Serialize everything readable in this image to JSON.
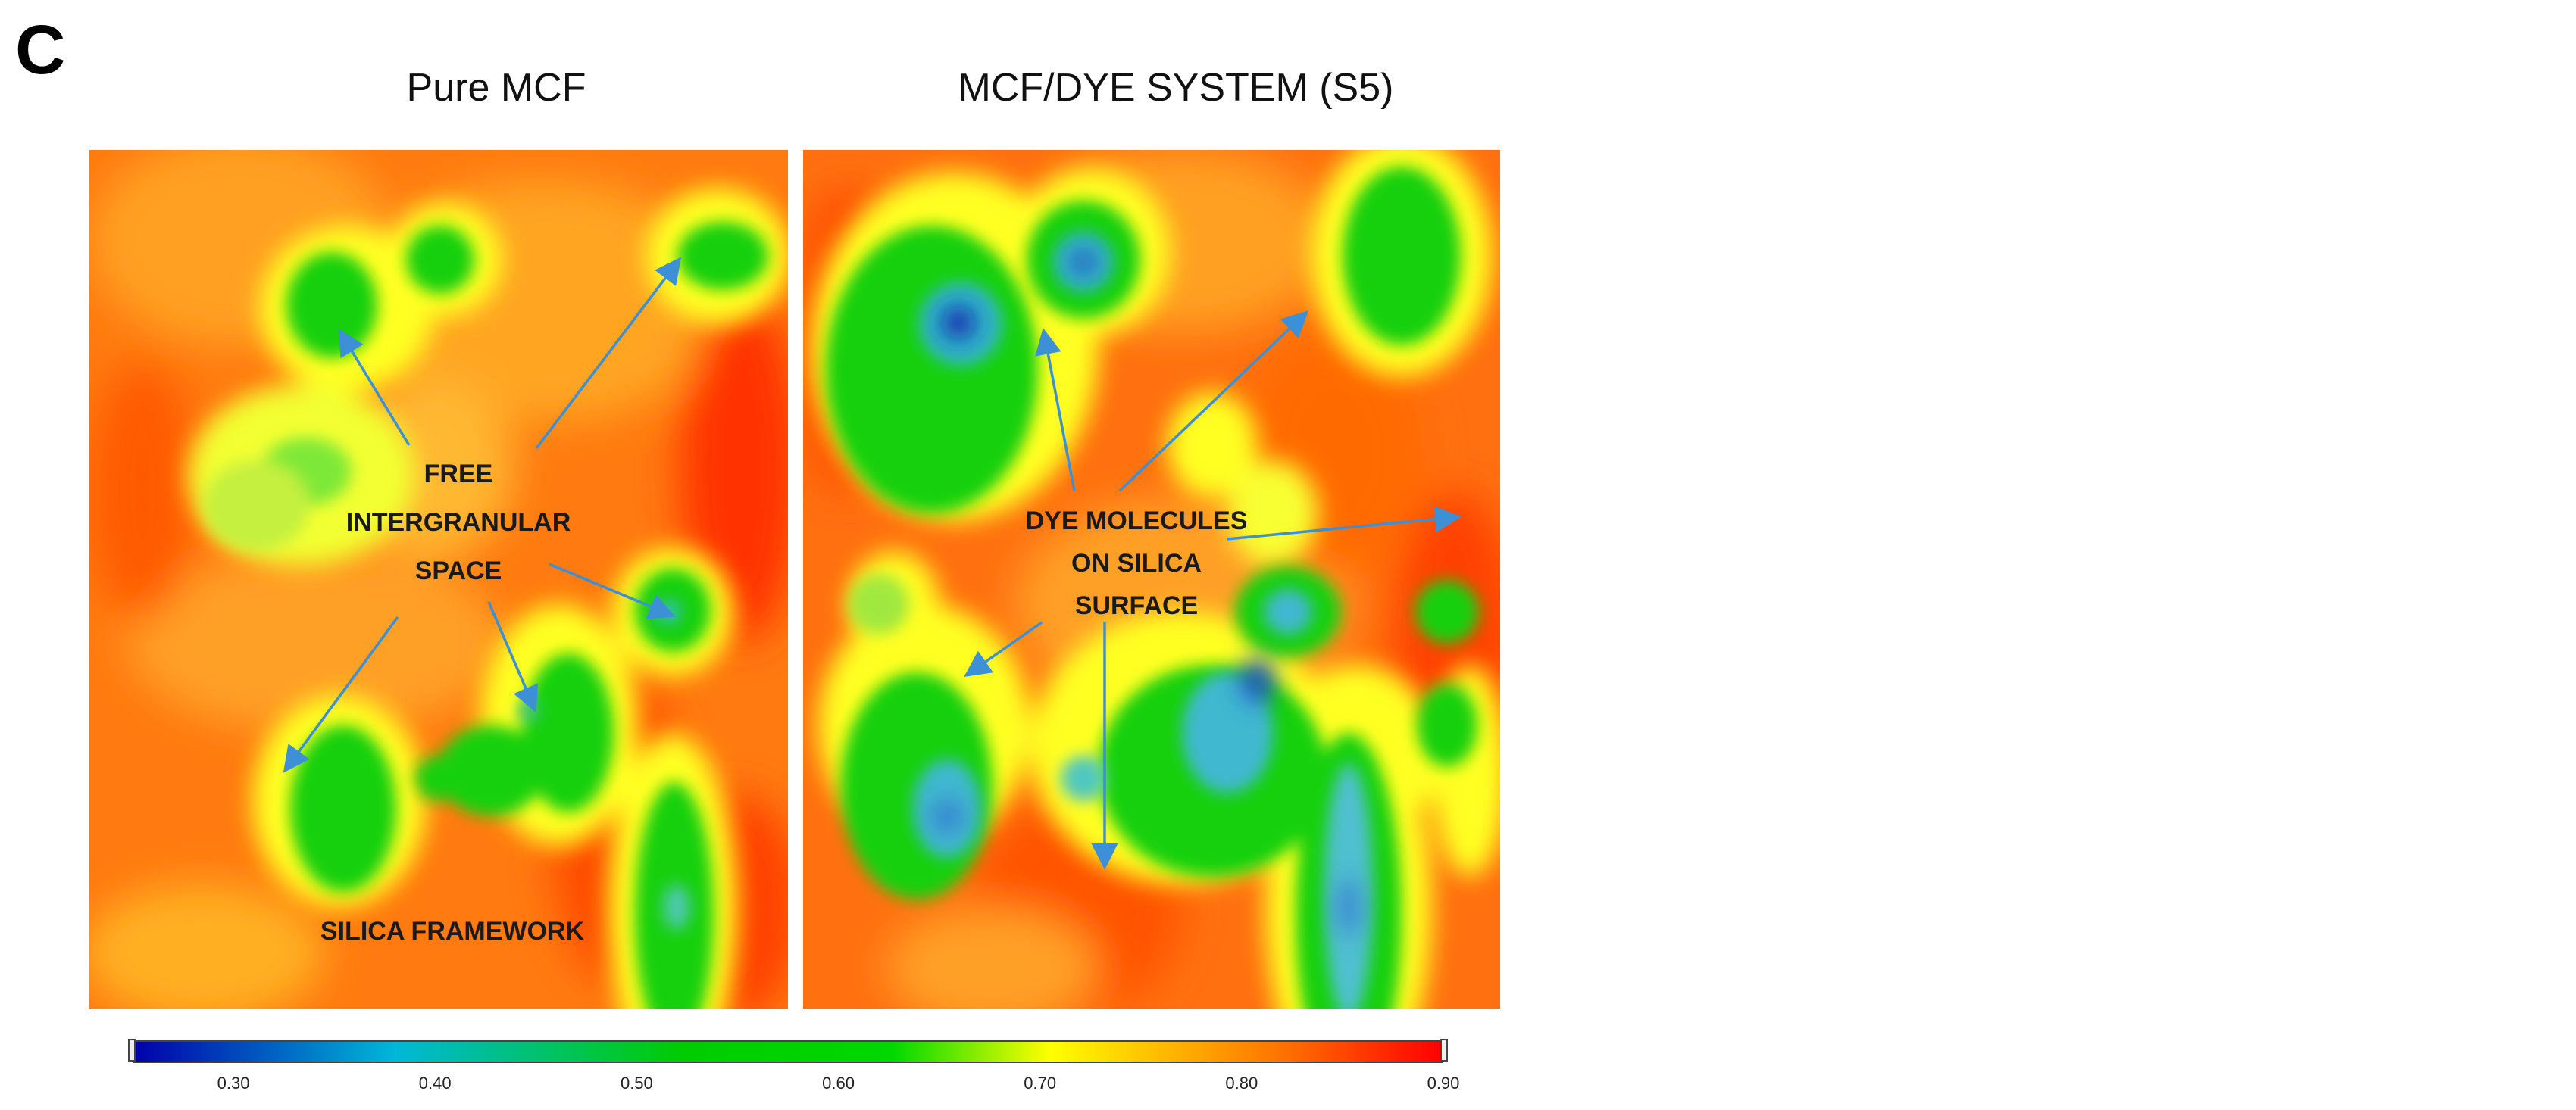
{
  "figure": {
    "panel_letter": "C",
    "panels": [
      {
        "title": "Pure MCF"
      },
      {
        "title": "MCF/DYE SYSTEM (S5)"
      }
    ],
    "annotations": {
      "free_space": [
        "FREE",
        "INTERGRANULAR",
        "SPACE"
      ],
      "silica_framework": "SILICA FRAMEWORK",
      "dye_molecules": [
        "DYE MOLECULES",
        "ON SILICA",
        "SURFACE"
      ]
    },
    "colors": {
      "background_high": "#ff5000",
      "colormap": [
        "#0000aa",
        "#00b8d8",
        "#00cc00",
        "#ffff00",
        "#ff7000",
        "#ff0000"
      ],
      "arrow": "#3d8fd6",
      "annotation_text": "#1a1a1a"
    }
  },
  "chart_data": {
    "type": "heatmap",
    "colorbar": {
      "min": 0.25,
      "max": 0.9,
      "ticks": [
        "0.30",
        "0.40",
        "0.50",
        "0.60",
        "0.70",
        "0.80",
        "0.90"
      ],
      "tick_values": [
        0.3,
        0.4,
        0.5,
        0.6,
        0.7,
        0.8,
        0.9
      ]
    },
    "panels": [
      {
        "title": "Pure MCF"
      },
      {
        "title": "MCF/DYE SYSTEM (S5)"
      }
    ]
  }
}
